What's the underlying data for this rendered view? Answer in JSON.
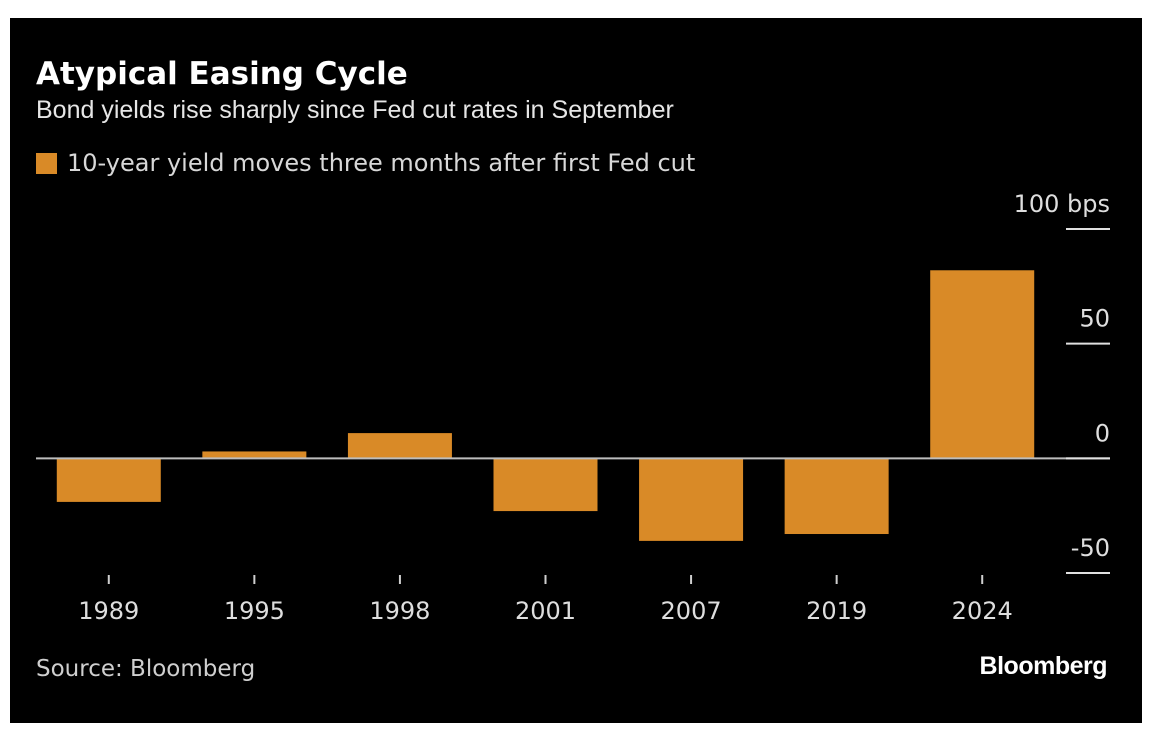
{
  "header": {
    "title": "Atypical Easing Cycle",
    "subtitle": "Bond yields rise sharply since Fed cut rates in September"
  },
  "footer": {
    "source": "Source: Bloomberg",
    "brand": "Bloomberg"
  },
  "colors": {
    "background": "#000000",
    "bar": "#d98a27",
    "zero_line": "#bdbdbd",
    "text": "#e6e6e6"
  },
  "chart_data": {
    "type": "bar",
    "title": "Atypical Easing Cycle",
    "subtitle": "Bond yields rise sharply since Fed cut rates in September",
    "categories": [
      "1989",
      "1995",
      "1998",
      "2001",
      "2007",
      "2019",
      "2024"
    ],
    "series": [
      {
        "name": "10-year yield moves three months after first Fed cut",
        "values": [
          -19,
          3,
          11,
          -23,
          -36,
          -33,
          82
        ]
      }
    ],
    "y_ticks": [
      100,
      50,
      0,
      -50
    ],
    "y_tick_labels": [
      "100 bps",
      "50",
      "0",
      "-50"
    ],
    "ylim": [
      -50,
      100
    ],
    "grid": false,
    "legend_position": "top-left",
    "y_axis_position": "right"
  }
}
